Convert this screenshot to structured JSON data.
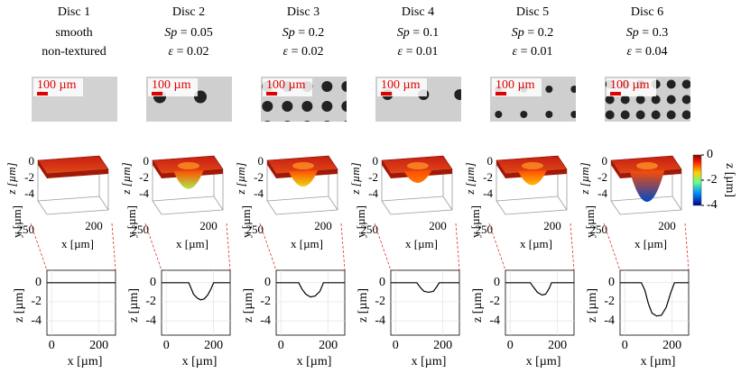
{
  "scale_bar": "100 µm",
  "discs": [
    {
      "title": "Disc 1",
      "lines": [
        "smooth",
        "non-textured"
      ],
      "profile": {
        "x": [
          -20,
          270
        ],
        "z": [
          0,
          0
        ]
      }
    },
    {
      "title": "Disc 2",
      "lines": [
        "Sp = 0.05",
        "ε = 0.02"
      ],
      "profile": {
        "x": [
          -20,
          95,
          105,
          115,
          130,
          145,
          160,
          175,
          190,
          200,
          270
        ],
        "z": [
          0,
          0,
          -0.6,
          -1.2,
          -1.6,
          -1.8,
          -1.7,
          -1.3,
          -0.6,
          0,
          0
        ]
      }
    },
    {
      "title": "Disc 3",
      "lines": [
        "Sp = 0.2",
        "ε = 0.02"
      ],
      "profile": {
        "x": [
          -20,
          75,
          90,
          105,
          125,
          145,
          165,
          180,
          270
        ],
        "z": [
          0,
          0,
          -0.7,
          -1.2,
          -1.5,
          -1.4,
          -0.9,
          0,
          0
        ]
      }
    },
    {
      "title": "Disc 4",
      "lines": [
        "Sp = 0.1",
        "ε = 0.01"
      ],
      "profile": {
        "x": [
          -20,
          90,
          105,
          120,
          140,
          160,
          175,
          185,
          270
        ],
        "z": [
          0,
          0,
          -0.5,
          -0.9,
          -1.0,
          -0.9,
          -0.4,
          0,
          0
        ]
      }
    },
    {
      "title": "Disc 5",
      "lines": [
        "Sp = 0.2",
        "ε = 0.01"
      ],
      "profile": {
        "x": [
          -20,
          85,
          100,
          115,
          135,
          150,
          165,
          175,
          270
        ],
        "z": [
          0,
          0,
          -0.5,
          -1.0,
          -1.3,
          -1.2,
          -0.6,
          0,
          0
        ]
      }
    },
    {
      "title": "Disc 6",
      "lines": [
        "Sp = 0.3",
        "ε = 0.04"
      ],
      "profile": {
        "x": [
          -20,
          70,
          85,
          100,
          115,
          135,
          155,
          175,
          195,
          210,
          270
        ],
        "z": [
          0,
          0,
          -0.8,
          -2.2,
          -3.2,
          -3.5,
          -3.4,
          -2.6,
          -1,
          0,
          0
        ]
      }
    }
  ],
  "surface_axes": {
    "zlabel": "z [µm]",
    "ylabel": "y [µm]",
    "xlabel": "x [µm]",
    "zticks": [
      0,
      -2,
      -4
    ],
    "yticks": [
      250
    ],
    "xticks": [
      200
    ]
  },
  "profile_axes": {
    "xlim": [
      -20,
      270
    ],
    "ylim": [
      -5.5,
      1.3
    ],
    "xticks": [
      0,
      200
    ],
    "yticks": [
      0,
      -2,
      -4
    ],
    "xlabel": "x [µm]",
    "ylabel": "z [µm]",
    "grid": true
  },
  "colorbar": {
    "label": "z [µm]",
    "range": [
      -4,
      0
    ],
    "ticks": [
      0,
      -2,
      -4
    ]
  }
}
